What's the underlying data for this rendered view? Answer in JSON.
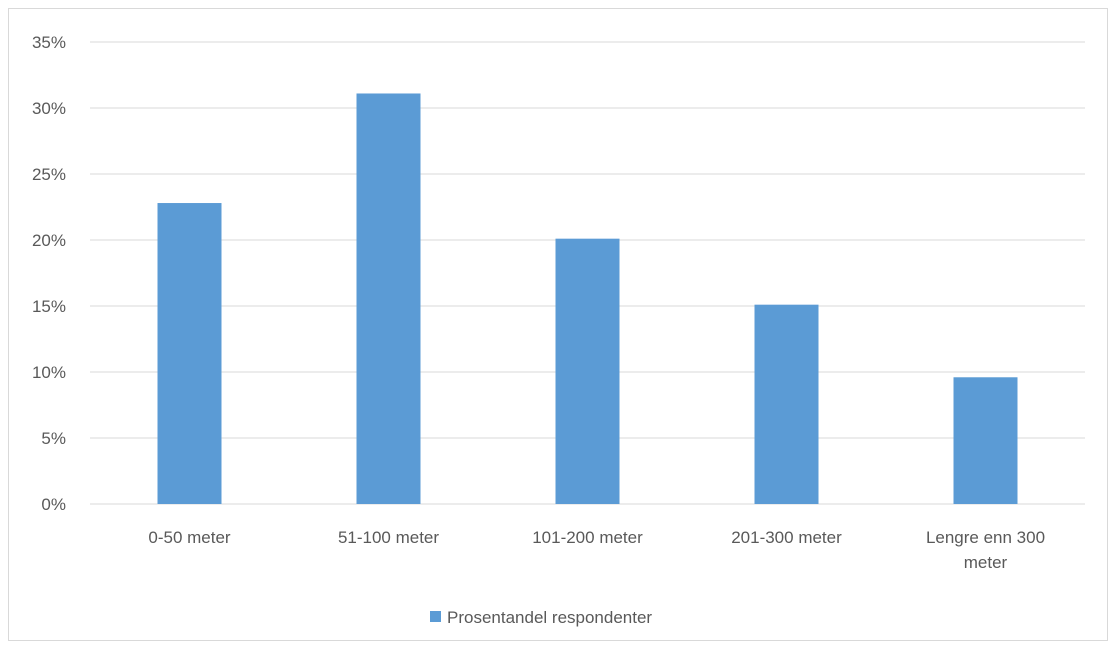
{
  "chart_data": {
    "type": "bar",
    "categories": [
      [
        "0-50 meter"
      ],
      [
        "51-100 meter"
      ],
      [
        "101-200 meter"
      ],
      [
        "201-300 meter"
      ],
      [
        "Lengre enn 300",
        "meter"
      ]
    ],
    "series": [
      {
        "name": "Prosentandel respondenter",
        "values": [
          22.8,
          31.1,
          20.1,
          15.1,
          9.6
        ],
        "color": "#5b9bd5"
      }
    ],
    "yticks": [
      "0%",
      "5%",
      "10%",
      "15%",
      "20%",
      "25%",
      "30%",
      "35%"
    ],
    "ylim": [
      0,
      35
    ],
    "ystep": 5,
    "grid": true,
    "legend": "bottom",
    "title": "",
    "xlabel": "",
    "ylabel": ""
  }
}
